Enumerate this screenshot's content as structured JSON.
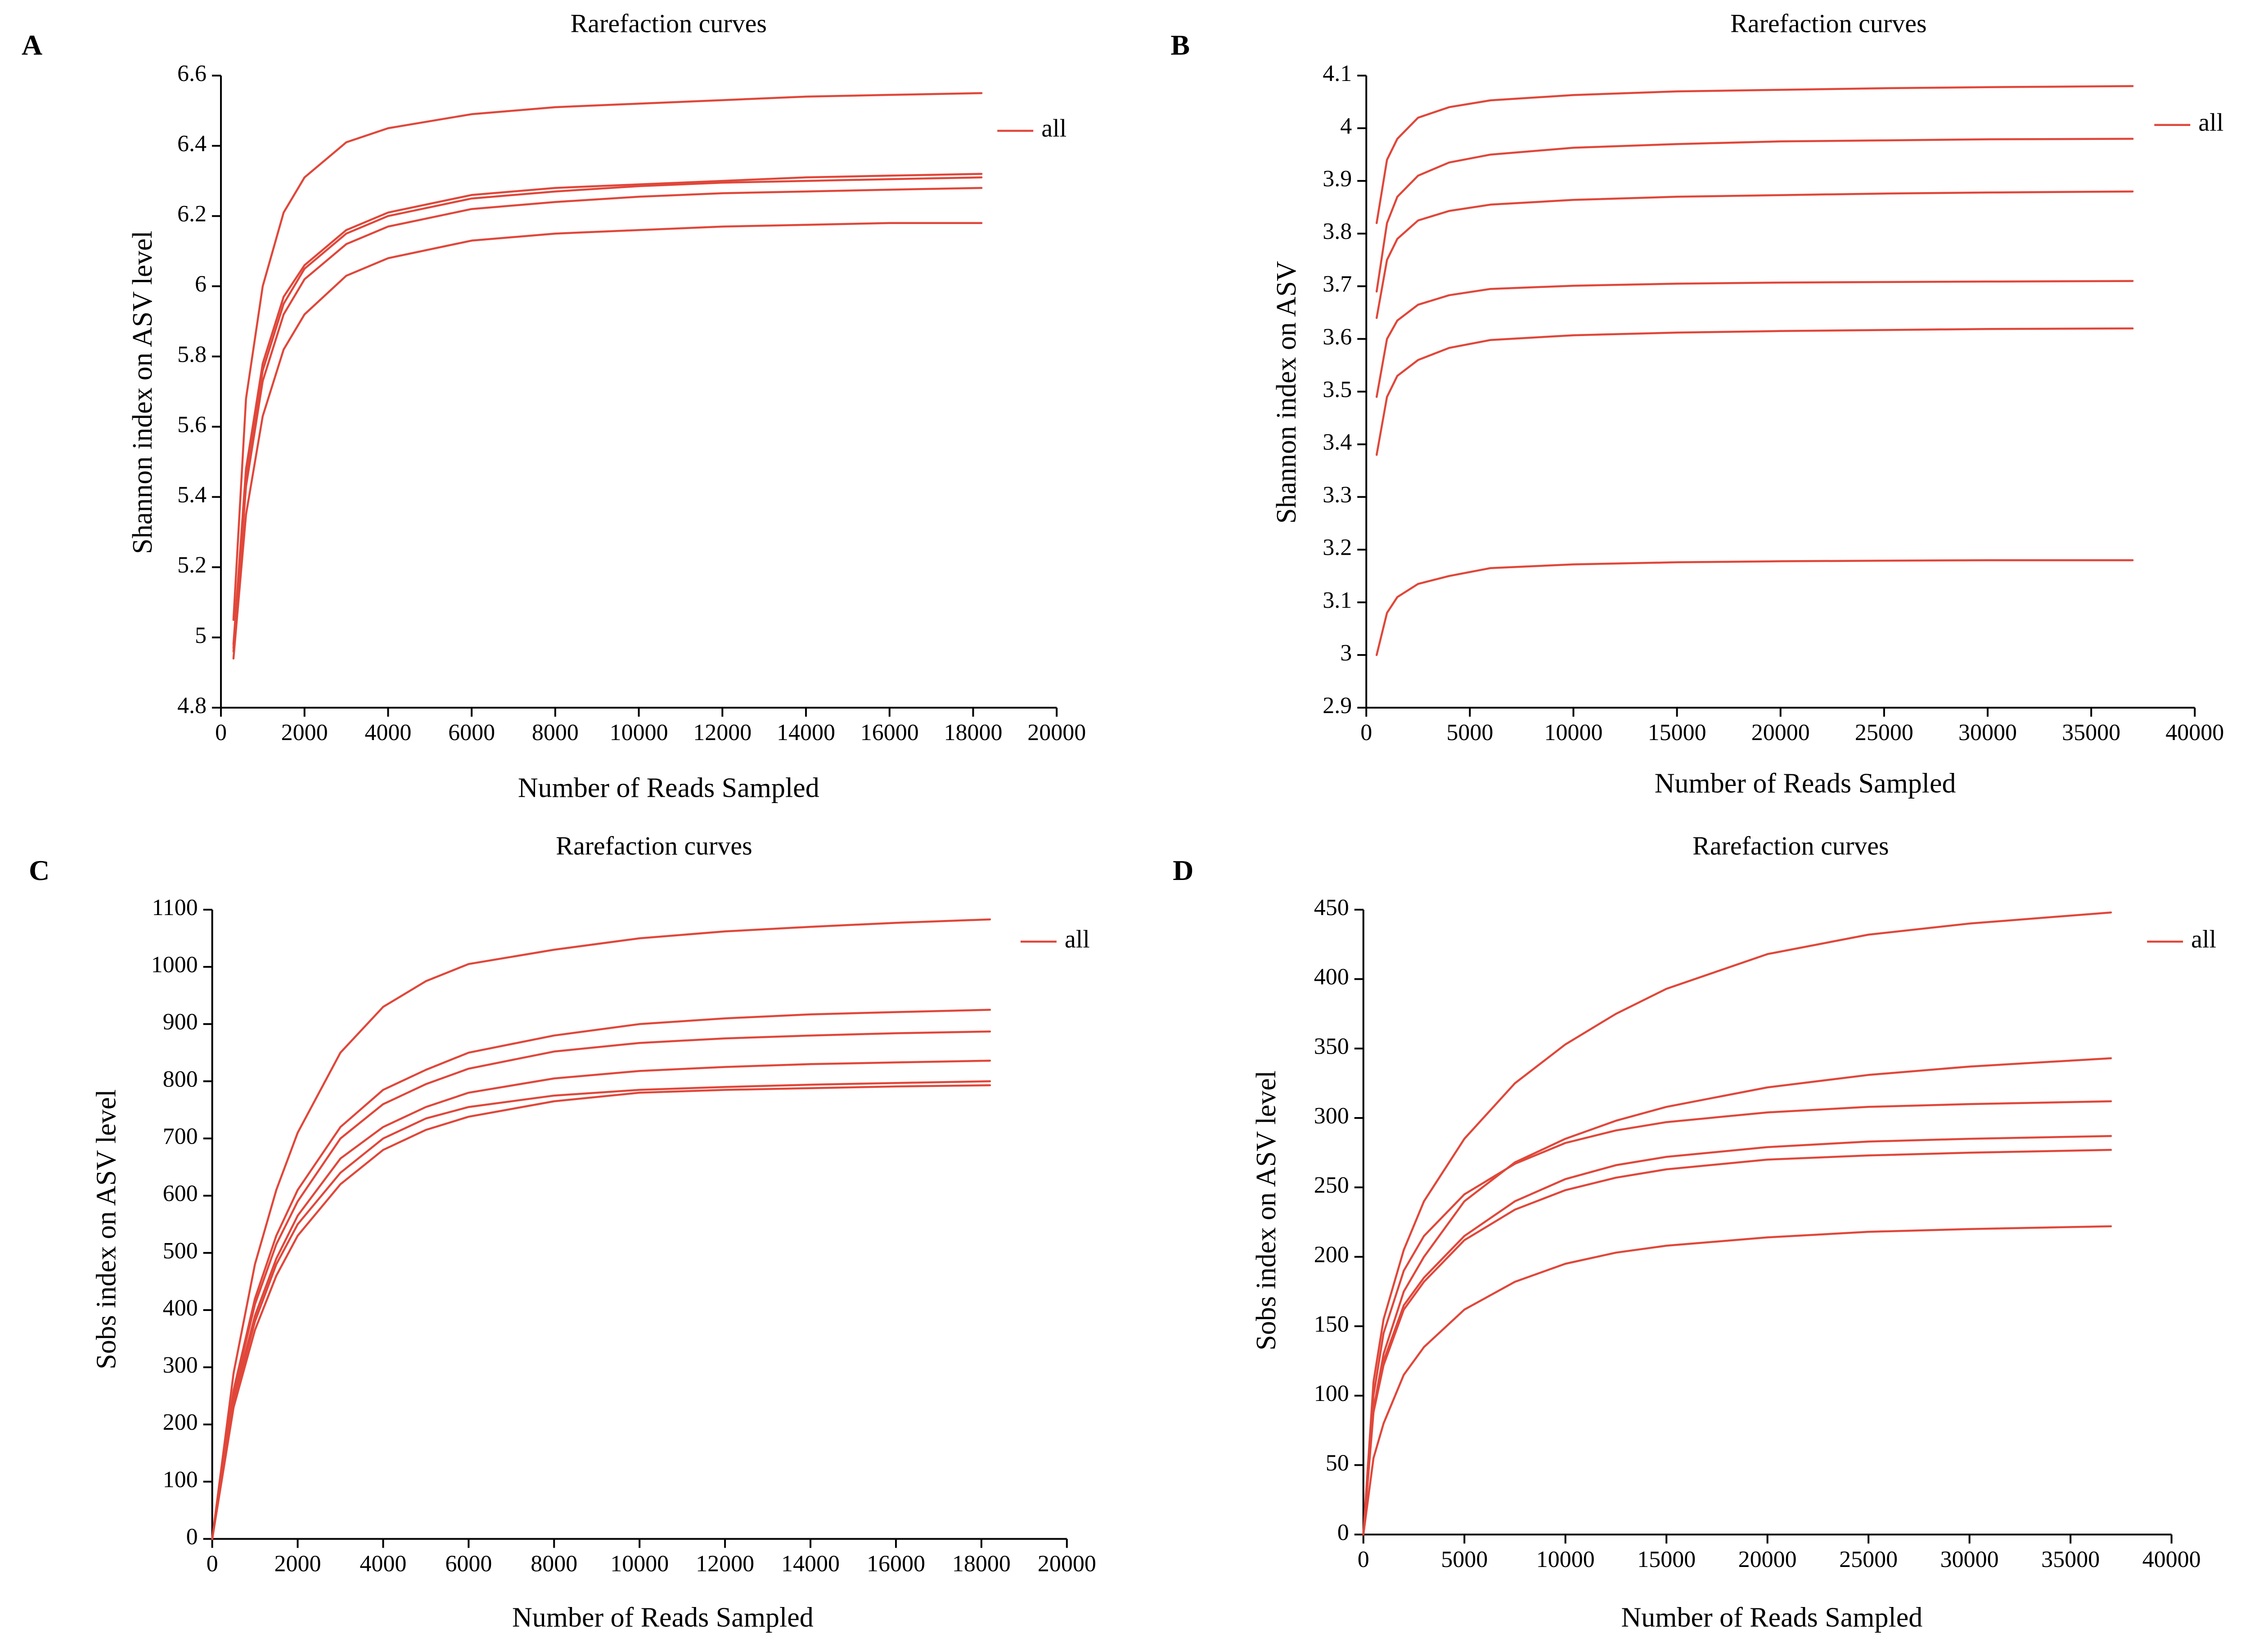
{
  "chart_data": [
    {
      "type": "line",
      "panel": "A",
      "title": "Rarefaction curves",
      "xlabel": "Number of Reads Sampled",
      "ylabel": "Shannon index on ASV level",
      "xlim": [
        0,
        20000
      ],
      "ylim": [
        4.8,
        6.6
      ],
      "xticks": [
        "0",
        "2000",
        "4000",
        "6000",
        "8000",
        "10000",
        "12000",
        "14000",
        "16000",
        "18000",
        "20000"
      ],
      "yticks": [
        "4.8",
        "5",
        "5.2",
        "5.4",
        "5.6",
        "5.8",
        "6",
        "6.2",
        "6.4",
        "6.6"
      ],
      "legend": [
        "all"
      ],
      "legend_position": "top-right",
      "grid": false,
      "color": "#e0473a",
      "series": [
        {
          "x": [
            300,
            600,
            1000,
            1500,
            2000,
            3000,
            4000,
            6000,
            8000,
            10000,
            12000,
            14000,
            16000,
            18200
          ],
          "values": [
            5.05,
            5.68,
            6.0,
            6.21,
            6.31,
            6.41,
            6.45,
            6.49,
            6.51,
            6.52,
            6.53,
            6.54,
            6.545,
            6.55
          ]
        },
        {
          "x": [
            300,
            600,
            1000,
            1500,
            2000,
            3000,
            4000,
            6000,
            8000,
            10000,
            12000,
            14000,
            16000,
            18200
          ],
          "values": [
            4.98,
            5.48,
            5.78,
            5.97,
            6.06,
            6.16,
            6.21,
            6.26,
            6.28,
            6.29,
            6.3,
            6.31,
            6.315,
            6.32
          ]
        },
        {
          "x": [
            300,
            600,
            1000,
            1500,
            2000,
            3000,
            4000,
            6000,
            8000,
            10000,
            12000,
            14000,
            16000,
            18200
          ],
          "values": [
            4.97,
            5.46,
            5.76,
            5.95,
            6.05,
            6.15,
            6.2,
            6.25,
            6.27,
            6.285,
            6.295,
            6.3,
            6.305,
            6.31
          ]
        },
        {
          "x": [
            300,
            600,
            1000,
            1500,
            2000,
            3000,
            4000,
            6000,
            8000,
            10000,
            12000,
            14000,
            16000,
            18200
          ],
          "values": [
            4.96,
            5.43,
            5.73,
            5.92,
            6.02,
            6.12,
            6.17,
            6.22,
            6.24,
            6.255,
            6.265,
            6.27,
            6.275,
            6.28
          ]
        },
        {
          "x": [
            300,
            600,
            1000,
            1500,
            2000,
            3000,
            4000,
            6000,
            8000,
            10000,
            12000,
            14000,
            16000,
            18200
          ],
          "values": [
            4.94,
            5.35,
            5.63,
            5.82,
            5.92,
            6.03,
            6.08,
            6.13,
            6.15,
            6.16,
            6.17,
            6.175,
            6.18,
            6.18
          ]
        }
      ]
    },
    {
      "type": "line",
      "panel": "B",
      "title": "Rarefaction curves",
      "xlabel": "Number of Reads Sampled",
      "ylabel": "Shannon index on ASV",
      "xlim": [
        0,
        40000
      ],
      "ylim": [
        2.9,
        4.1
      ],
      "xticks": [
        "0",
        "5000",
        "10000",
        "15000",
        "20000",
        "25000",
        "30000",
        "35000",
        "40000"
      ],
      "yticks": [
        "2.9",
        "3",
        "3.1",
        "3.2",
        "3.3",
        "3.4",
        "3.5",
        "3.6",
        "3.7",
        "3.8",
        "3.9",
        "4",
        "4.1"
      ],
      "legend": [
        "all"
      ],
      "legend_position": "top-right",
      "grid": false,
      "color": "#e0473a",
      "series": [
        {
          "x": [
            500,
            1000,
            1500,
            2500,
            4000,
            6000,
            10000,
            15000,
            20000,
            25000,
            30000,
            37000
          ],
          "values": [
            3.82,
            3.94,
            3.98,
            4.02,
            4.04,
            4.053,
            4.063,
            4.07,
            4.073,
            4.076,
            4.078,
            4.08
          ]
        },
        {
          "x": [
            500,
            1000,
            1500,
            2500,
            4000,
            6000,
            10000,
            15000,
            20000,
            25000,
            30000,
            37000
          ],
          "values": [
            3.69,
            3.82,
            3.87,
            3.91,
            3.935,
            3.95,
            3.963,
            3.97,
            3.975,
            3.977,
            3.979,
            3.98
          ]
        },
        {
          "x": [
            500,
            1000,
            1500,
            2500,
            4000,
            6000,
            10000,
            15000,
            20000,
            25000,
            30000,
            37000
          ],
          "values": [
            3.64,
            3.75,
            3.79,
            3.825,
            3.843,
            3.855,
            3.864,
            3.87,
            3.873,
            3.876,
            3.878,
            3.88
          ]
        },
        {
          "x": [
            500,
            1000,
            1500,
            2500,
            4000,
            6000,
            10000,
            15000,
            20000,
            25000,
            30000,
            37000
          ],
          "values": [
            3.49,
            3.6,
            3.635,
            3.665,
            3.683,
            3.695,
            3.701,
            3.705,
            3.707,
            3.708,
            3.709,
            3.71
          ]
        },
        {
          "x": [
            500,
            1000,
            1500,
            2500,
            4000,
            6000,
            10000,
            15000,
            20000,
            25000,
            30000,
            37000
          ],
          "values": [
            3.38,
            3.49,
            3.53,
            3.56,
            3.583,
            3.598,
            3.607,
            3.612,
            3.615,
            3.617,
            3.619,
            3.62
          ]
        },
        {
          "x": [
            500,
            1000,
            1500,
            2500,
            4000,
            6000,
            10000,
            15000,
            20000,
            25000,
            30000,
            37000
          ],
          "values": [
            3.0,
            3.08,
            3.11,
            3.135,
            3.15,
            3.165,
            3.172,
            3.176,
            3.178,
            3.179,
            3.18,
            3.18
          ]
        }
      ]
    },
    {
      "type": "line",
      "panel": "C",
      "title": "Rarefaction curves",
      "xlabel": "Number of Reads Sampled",
      "ylabel": "Sobs index on ASV level",
      "xlim": [
        0,
        20000
      ],
      "ylim": [
        0,
        1100
      ],
      "xticks": [
        "0",
        "2000",
        "4000",
        "6000",
        "8000",
        "10000",
        "12000",
        "14000",
        "16000",
        "18000",
        "20000"
      ],
      "yticks": [
        "0",
        "100",
        "200",
        "300",
        "400",
        "500",
        "600",
        "700",
        "800",
        "900",
        "1000",
        "1100"
      ],
      "legend": [
        "all"
      ],
      "legend_position": "top-right",
      "grid": false,
      "color": "#e0473a",
      "series": [
        {
          "x": [
            0,
            500,
            1000,
            1500,
            2000,
            3000,
            4000,
            5000,
            6000,
            8000,
            10000,
            12000,
            14000,
            16000,
            18200
          ],
          "values": [
            0,
            290,
            480,
            610,
            710,
            850,
            930,
            975,
            1005,
            1030,
            1050,
            1062,
            1070,
            1077,
            1083
          ]
        },
        {
          "x": [
            0,
            500,
            1000,
            1500,
            2000,
            3000,
            4000,
            5000,
            6000,
            8000,
            10000,
            12000,
            14000,
            16000,
            18200
          ],
          "values": [
            0,
            260,
            420,
            530,
            610,
            720,
            785,
            820,
            850,
            880,
            900,
            910,
            917,
            921,
            925
          ]
        },
        {
          "x": [
            0,
            500,
            1000,
            1500,
            2000,
            3000,
            4000,
            5000,
            6000,
            8000,
            10000,
            12000,
            14000,
            16000,
            18200
          ],
          "values": [
            0,
            255,
            410,
            515,
            590,
            700,
            760,
            795,
            822,
            852,
            867,
            875,
            880,
            884,
            887
          ]
        },
        {
          "x": [
            0,
            500,
            1000,
            1500,
            2000,
            3000,
            4000,
            5000,
            6000,
            8000,
            10000,
            12000,
            14000,
            16000,
            18200
          ],
          "values": [
            0,
            245,
            390,
            490,
            565,
            665,
            720,
            755,
            780,
            805,
            818,
            825,
            830,
            833,
            836
          ]
        },
        {
          "x": [
            0,
            500,
            1000,
            1500,
            2000,
            3000,
            4000,
            5000,
            6000,
            8000,
            10000,
            12000,
            14000,
            16000,
            18200
          ],
          "values": [
            0,
            240,
            380,
            480,
            550,
            640,
            700,
            735,
            755,
            775,
            785,
            790,
            794,
            797,
            800
          ]
        },
        {
          "x": [
            0,
            500,
            1000,
            1500,
            2000,
            3000,
            4000,
            5000,
            6000,
            8000,
            10000,
            12000,
            14000,
            16000,
            18200
          ],
          "values": [
            0,
            230,
            365,
            460,
            530,
            620,
            680,
            715,
            738,
            765,
            780,
            785,
            788,
            791,
            793
          ]
        }
      ]
    },
    {
      "type": "line",
      "panel": "D",
      "title": "Rarefaction curves",
      "xlabel": "Number of Reads Sampled",
      "ylabel": "Sobs index on ASV level",
      "xlim": [
        0,
        40000
      ],
      "ylim": [
        0,
        450
      ],
      "xticks": [
        "0",
        "5000",
        "10000",
        "15000",
        "20000",
        "25000",
        "30000",
        "35000",
        "40000"
      ],
      "yticks": [
        "0",
        "50",
        "100",
        "150",
        "200",
        "250",
        "300",
        "350",
        "400",
        "450"
      ],
      "legend": [
        "all"
      ],
      "legend_position": "top-right",
      "grid": false,
      "color": "#e0473a",
      "series": [
        {
          "x": [
            0,
            500,
            1000,
            2000,
            3000,
            5000,
            7500,
            10000,
            12500,
            15000,
            20000,
            25000,
            30000,
            37000
          ],
          "values": [
            0,
            110,
            155,
            205,
            240,
            285,
            325,
            353,
            375,
            393,
            418,
            432,
            440,
            448
          ]
        },
        {
          "x": [
            0,
            500,
            1000,
            2000,
            3000,
            5000,
            7500,
            10000,
            12500,
            15000,
            20000,
            25000,
            30000,
            37000
          ],
          "values": [
            0,
            90,
            130,
            175,
            200,
            240,
            268,
            285,
            298,
            308,
            322,
            331,
            337,
            343
          ]
        },
        {
          "x": [
            0,
            500,
            1000,
            2000,
            3000,
            5000,
            7500,
            10000,
            12500,
            15000,
            20000,
            25000,
            30000,
            37000
          ],
          "values": [
            0,
            100,
            145,
            190,
            215,
            245,
            267,
            282,
            291,
            297,
            304,
            308,
            310,
            312
          ]
        },
        {
          "x": [
            0,
            500,
            1000,
            2000,
            3000,
            5000,
            7500,
            10000,
            12500,
            15000,
            20000,
            25000,
            30000,
            37000
          ],
          "values": [
            0,
            90,
            125,
            165,
            185,
            215,
            240,
            256,
            266,
            272,
            279,
            283,
            285,
            287
          ]
        },
        {
          "x": [
            0,
            500,
            1000,
            2000,
            3000,
            5000,
            7500,
            10000,
            12500,
            15000,
            20000,
            25000,
            30000,
            37000
          ],
          "values": [
            0,
            88,
            122,
            162,
            182,
            212,
            234,
            248,
            257,
            263,
            270,
            273,
            275,
            277
          ]
        },
        {
          "x": [
            0,
            500,
            1000,
            2000,
            3000,
            5000,
            7500,
            10000,
            12500,
            15000,
            20000,
            25000,
            30000,
            37000
          ],
          "values": [
            0,
            55,
            80,
            115,
            135,
            162,
            182,
            195,
            203,
            208,
            214,
            218,
            220,
            222
          ]
        }
      ]
    }
  ]
}
